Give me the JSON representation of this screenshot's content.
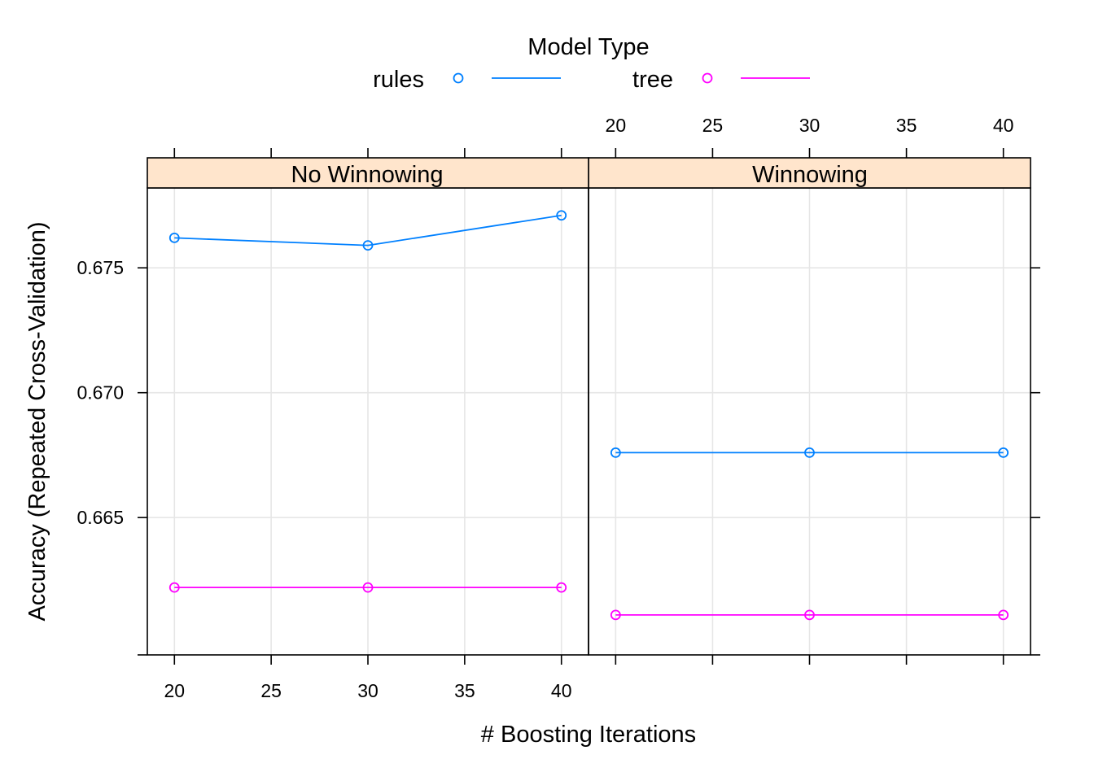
{
  "chart_data": {
    "type": "line",
    "legend": {
      "title": "Model Type",
      "placement": "top",
      "entries": [
        {
          "name": "rules",
          "color": "#0080ff"
        },
        {
          "name": "tree",
          "color": "#ff00ff"
        }
      ]
    },
    "xlabel": "# Boosting Iterations",
    "ylabel": "Accuracy (Repeated Cross-Validation)",
    "xlim": [
      18.6,
      41.4
    ],
    "ylim": [
      0.6595,
      0.6782
    ],
    "x_ticks": [
      20,
      25,
      30,
      35,
      40
    ],
    "x_tick_labels": [
      "20",
      "25",
      "30",
      "35",
      "40"
    ],
    "y_ticks": [
      0.665,
      0.67,
      0.675
    ],
    "y_tick_labels": [
      "0.665",
      "0.670",
      "0.675"
    ],
    "grid": true,
    "panels": [
      {
        "title": "No Winnowing",
        "series": [
          {
            "name": "rules",
            "x": [
              20,
              30,
              40
            ],
            "y": [
              0.6762,
              0.6759,
              0.6771
            ]
          },
          {
            "name": "tree",
            "x": [
              20,
              30,
              40
            ],
            "y": [
              0.6622,
              0.6622,
              0.6622
            ]
          }
        ]
      },
      {
        "title": "Winnowing",
        "series": [
          {
            "name": "rules",
            "x": [
              20,
              30,
              40
            ],
            "y": [
              0.6676,
              0.6676,
              0.6676
            ]
          },
          {
            "name": "tree",
            "x": [
              20,
              30,
              40
            ],
            "y": [
              0.6611,
              0.6611,
              0.6611
            ]
          }
        ]
      }
    ],
    "strip_color": "#ffe5cc",
    "grid_color": "#e6e6e6"
  }
}
